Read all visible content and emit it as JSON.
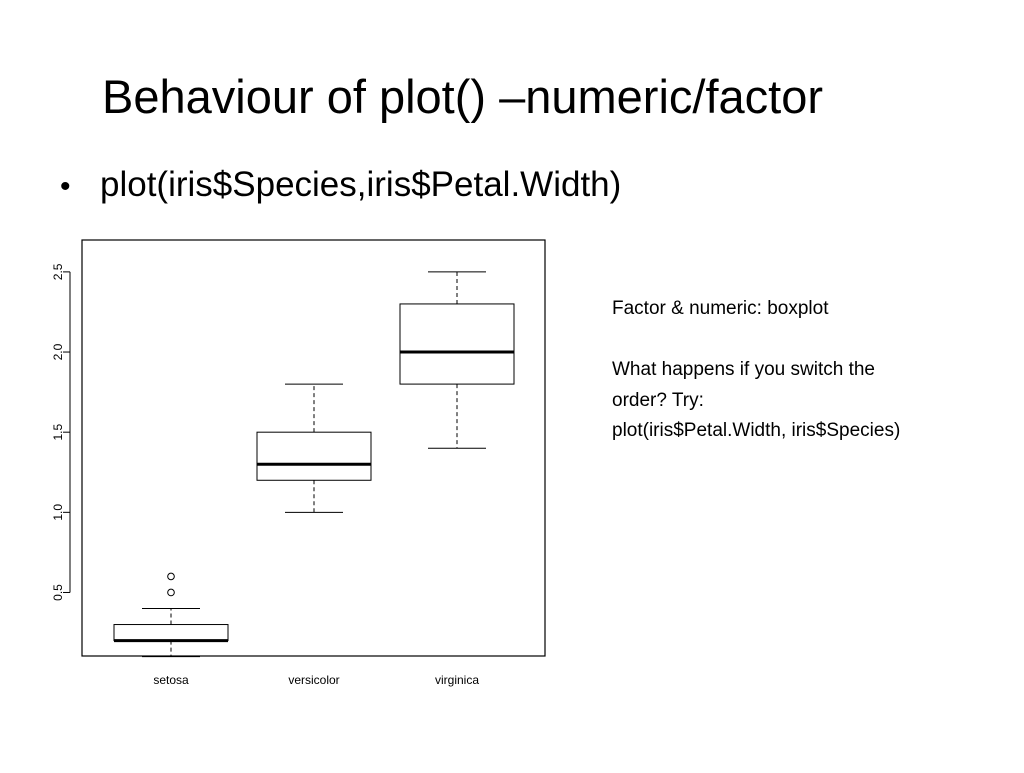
{
  "slide": {
    "title": "Behaviour of plot() –numeric/factor",
    "bullet": {
      "symbol": "•",
      "text": "plot(iris$Species,iris$Petal.Width)"
    },
    "note": {
      "line1": "Factor & numeric: boxplot",
      "line2": "What happens if you switch the",
      "line3": "order?  Try:",
      "line4": "plot(iris$Petal.Width, iris$Species)"
    }
  },
  "chart_data": {
    "type": "boxplot",
    "categories": [
      "setosa",
      "versicolor",
      "virginica"
    ],
    "boxes": [
      {
        "category": "setosa",
        "whisker_low": 0.1,
        "q1": 0.2,
        "median": 0.2,
        "q3": 0.3,
        "whisker_high": 0.4,
        "outliers": [
          0.5,
          0.6
        ]
      },
      {
        "category": "versicolor",
        "whisker_low": 1.0,
        "q1": 1.2,
        "median": 1.3,
        "q3": 1.5,
        "whisker_high": 1.8,
        "outliers": []
      },
      {
        "category": "virginica",
        "whisker_low": 1.4,
        "q1": 1.8,
        "median": 2.0,
        "q3": 2.3,
        "whisker_high": 2.5,
        "outliers": []
      }
    ],
    "yticks": [
      0.5,
      1.0,
      1.5,
      2.0,
      2.5
    ],
    "ytick_labels": [
      "0.5",
      "1.0",
      "1.5",
      "2.0",
      "2.5"
    ],
    "ylim": [
      0.1,
      2.5
    ],
    "grid": false,
    "title": "",
    "xlabel": "",
    "ylabel": ""
  }
}
